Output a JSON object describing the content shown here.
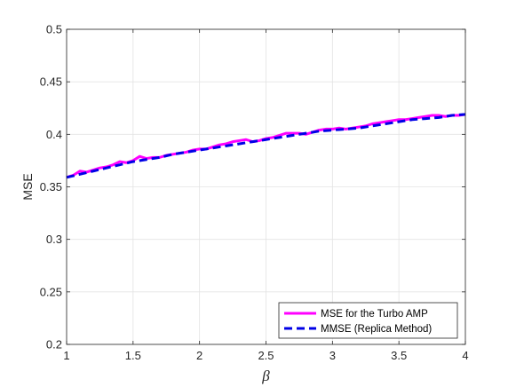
{
  "chart_data": {
    "type": "line",
    "title": "",
    "xlabel": "β",
    "ylabel": "MSE",
    "xlim": [
      1,
      4
    ],
    "ylim": [
      0.2,
      0.5
    ],
    "xticks": [
      1,
      1.5,
      2,
      2.5,
      3,
      3.5,
      4
    ],
    "xtick_labels": [
      "1",
      "1.5",
      "2",
      "2.5",
      "3",
      "3.5",
      "4"
    ],
    "yticks": [
      0.2,
      0.25,
      0.3,
      0.35,
      0.4,
      0.45,
      0.5
    ],
    "ytick_labels": [
      "0.2",
      "0.25",
      "0.3",
      "0.35",
      "0.4",
      "0.45",
      "0.5"
    ],
    "grid": true,
    "legend_position": "bottom-right",
    "series": [
      {
        "name": "MSE for the Turbo AMP",
        "color": "#ff00ff",
        "style": "solid",
        "x": [
          1.0,
          1.05,
          1.1,
          1.15,
          1.2,
          1.25,
          1.3,
          1.35,
          1.4,
          1.45,
          1.5,
          1.55,
          1.6,
          1.65,
          1.7,
          1.75,
          1.8,
          1.85,
          1.9,
          1.95,
          2.0,
          2.05,
          2.1,
          2.15,
          2.2,
          2.25,
          2.3,
          2.35,
          2.4,
          2.45,
          2.5,
          2.55,
          2.6,
          2.65,
          2.7,
          2.75,
          2.8,
          2.85,
          2.9,
          2.95,
          3.0,
          3.05,
          3.1,
          3.15,
          3.2,
          3.25,
          3.3,
          3.35,
          3.4,
          3.45,
          3.5,
          3.55,
          3.6,
          3.65,
          3.7,
          3.75,
          3.8,
          3.85,
          3.9,
          3.95,
          4.0
        ],
        "y": [
          0.359,
          0.361,
          0.365,
          0.364,
          0.366,
          0.368,
          0.369,
          0.371,
          0.374,
          0.373,
          0.375,
          0.379,
          0.377,
          0.378,
          0.378,
          0.38,
          0.381,
          0.382,
          0.383,
          0.385,
          0.386,
          0.386,
          0.388,
          0.39,
          0.391,
          0.393,
          0.394,
          0.395,
          0.393,
          0.394,
          0.396,
          0.397,
          0.399,
          0.401,
          0.401,
          0.401,
          0.4,
          0.402,
          0.404,
          0.405,
          0.405,
          0.406,
          0.405,
          0.406,
          0.407,
          0.408,
          0.41,
          0.411,
          0.412,
          0.413,
          0.414,
          0.414,
          0.415,
          0.416,
          0.417,
          0.418,
          0.418,
          0.417,
          0.418,
          0.418,
          0.419
        ]
      },
      {
        "name": "MMSE (Replica Method)",
        "color": "#0000e6",
        "style": "dashed",
        "x": [
          1.0,
          1.1,
          1.2,
          1.3,
          1.4,
          1.5,
          1.6,
          1.7,
          1.8,
          1.9,
          2.0,
          2.1,
          2.2,
          2.3,
          2.4,
          2.5,
          2.6,
          2.7,
          2.8,
          2.9,
          3.0,
          3.1,
          3.2,
          3.3,
          3.4,
          3.5,
          3.6,
          3.7,
          3.8,
          3.9,
          4.0
        ],
        "y": [
          0.359,
          0.362,
          0.365,
          0.368,
          0.371,
          0.374,
          0.376,
          0.378,
          0.381,
          0.383,
          0.385,
          0.387,
          0.389,
          0.391,
          0.393,
          0.395,
          0.397,
          0.399,
          0.401,
          0.403,
          0.404,
          0.405,
          0.406,
          0.408,
          0.41,
          0.412,
          0.414,
          0.415,
          0.416,
          0.418,
          0.419
        ]
      }
    ]
  }
}
